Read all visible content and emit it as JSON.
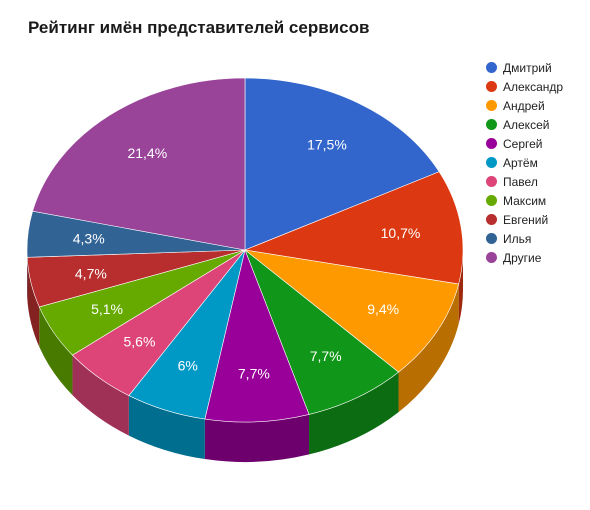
{
  "chart_data": {
    "type": "pie",
    "title": "Рейтинг имён представителей сервисов",
    "legend_position": "right",
    "three_d": true,
    "categories": [
      "Дмитрий",
      "Александр",
      "Андрей",
      "Алексей",
      "Сергей",
      "Артём",
      "Павел",
      "Максим",
      "Евгений",
      "Илья",
      "Другие"
    ],
    "values": [
      17.5,
      10.7,
      9.4,
      7.7,
      7.7,
      6,
      5.6,
      5.1,
      4.7,
      4.3,
      21.4
    ],
    "value_labels": [
      "17,5%",
      "10,7%",
      "9,4%",
      "7,7%",
      "7,7%",
      "6%",
      "5,6%",
      "5,1%",
      "4,7%",
      "4,3%",
      "21,4%"
    ],
    "colors": [
      "#3366cc",
      "#dc3912",
      "#ff9900",
      "#109618",
      "#990099",
      "#0099c6",
      "#dd4477",
      "#66aa00",
      "#b82e2e",
      "#316395",
      "#994499"
    ]
  }
}
